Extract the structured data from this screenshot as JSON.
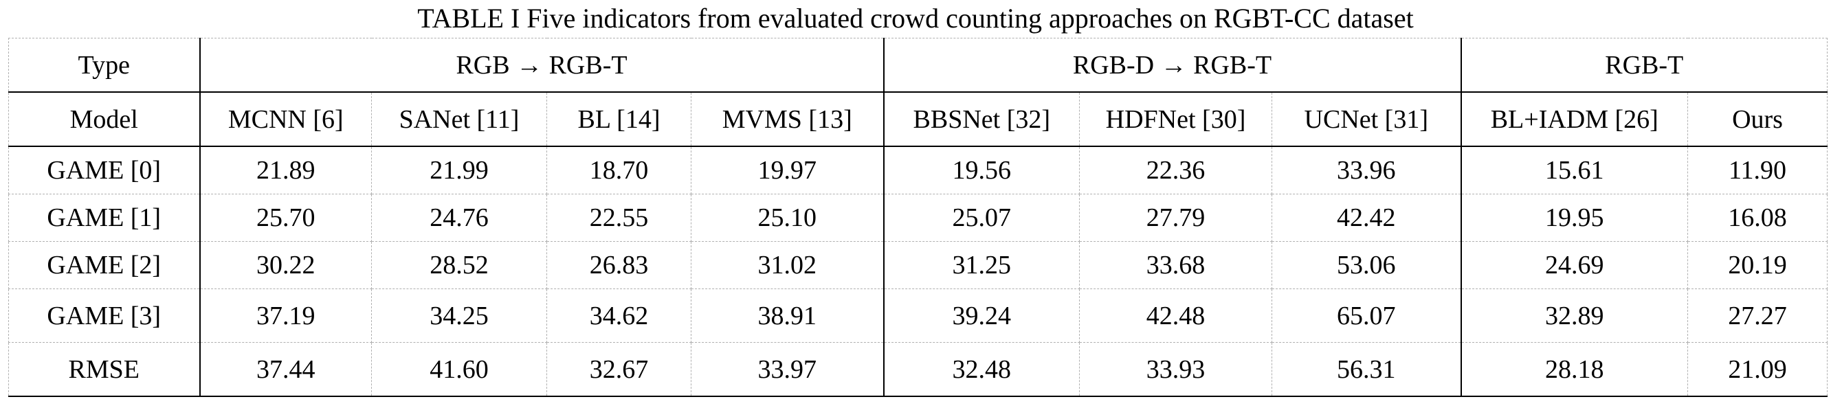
{
  "caption": "TABLE I Five indicators from evaluated crowd counting approaches on RGBT-CC dataset",
  "header": {
    "type_label": "Type",
    "model_label": "Model",
    "groups": [
      {
        "label": "RGB → RGB-T"
      },
      {
        "label": "RGB-D → RGB-T"
      },
      {
        "label": "RGB-T"
      }
    ],
    "models": [
      "MCNN [6]",
      "SANet [11]",
      "BL [14]",
      "MVMS [13]",
      "BBSNet [32]",
      "HDFNet [30]",
      "UCNet [31]",
      "BL+IADM [26]",
      "Ours"
    ]
  },
  "rows": [
    {
      "metric": "GAME [0]",
      "values": [
        "21.89",
        "21.99",
        "18.70",
        "19.97",
        "19.56",
        "22.36",
        "33.96",
        "15.61",
        "11.90"
      ]
    },
    {
      "metric": "GAME [1]",
      "values": [
        "25.70",
        "24.76",
        "22.55",
        "25.10",
        "25.07",
        "27.79",
        "42.42",
        "19.95",
        "16.08"
      ]
    },
    {
      "metric": "GAME [2]",
      "values": [
        "30.22",
        "28.52",
        "26.83",
        "31.02",
        "31.25",
        "33.68",
        "53.06",
        "24.69",
        "20.19"
      ]
    },
    {
      "metric": "GAME [3]",
      "values": [
        "37.19",
        "34.25",
        "34.62",
        "38.91",
        "39.24",
        "42.48",
        "65.07",
        "32.89",
        "27.27"
      ]
    },
    {
      "metric": "RMSE",
      "values": [
        "37.44",
        "41.60",
        "32.67",
        "33.97",
        "32.48",
        "33.93",
        "56.31",
        "28.18",
        "21.09"
      ]
    }
  ],
  "best_column": 8
}
